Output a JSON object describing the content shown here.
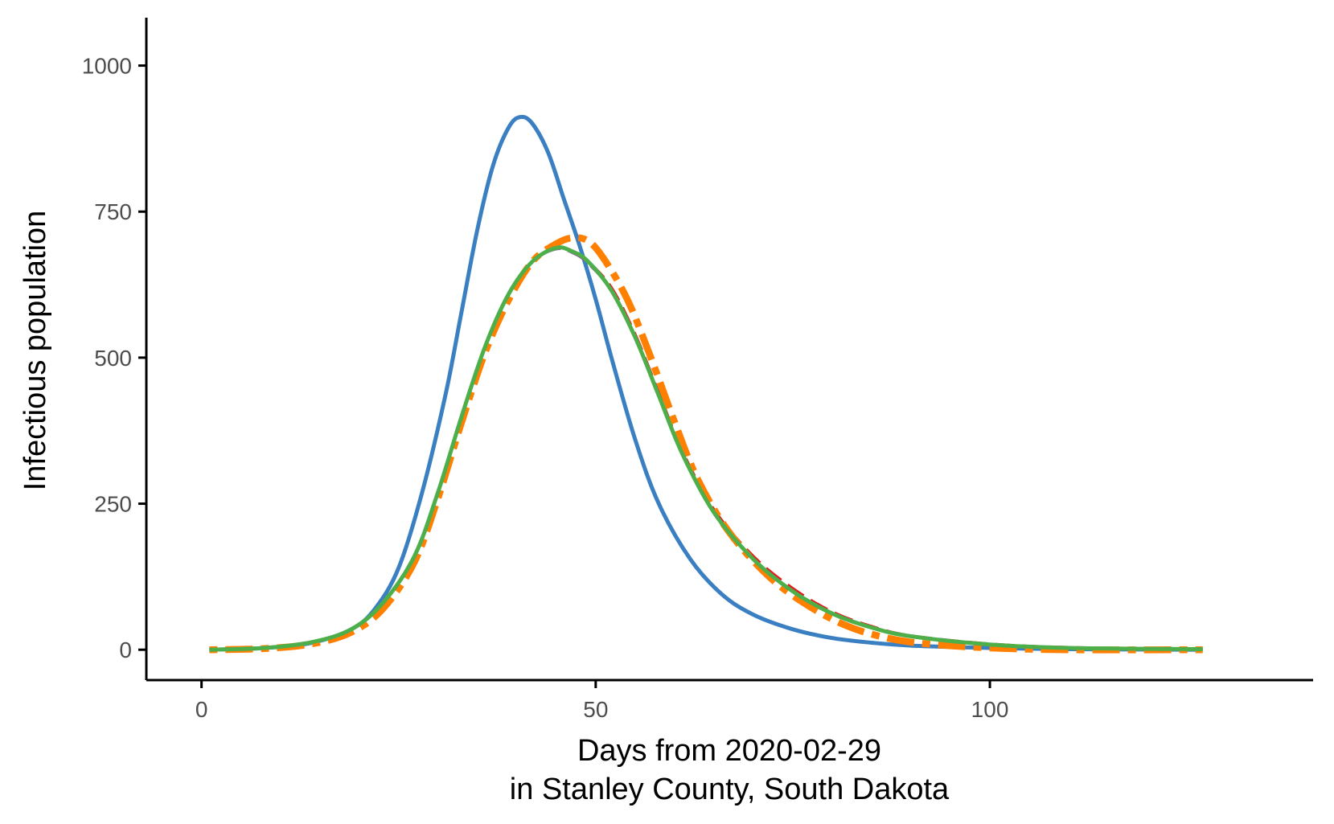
{
  "chart_data": {
    "type": "line",
    "xlabel_line1": "Days from 2020-02-29",
    "xlabel_line2": "in Stanley County, South Dakota",
    "ylabel": "Infectious population",
    "xlim": [
      -7,
      141
    ],
    "ylim": [
      -52,
      1082
    ],
    "x_ticks": [
      0,
      50,
      100
    ],
    "y_ticks": [
      0,
      250,
      500,
      750,
      1000
    ],
    "grid": false,
    "legend": "none",
    "series": [
      {
        "color": "#3a7fc1",
        "style": "solid",
        "points": [
          [
            1,
            0
          ],
          [
            8,
            3
          ],
          [
            14,
            12
          ],
          [
            19,
            35
          ],
          [
            22,
            70
          ],
          [
            25,
            140
          ],
          [
            28,
            270
          ],
          [
            31,
            440
          ],
          [
            33,
            580
          ],
          [
            35,
            720
          ],
          [
            37,
            830
          ],
          [
            39,
            895
          ],
          [
            40.5,
            912
          ],
          [
            42,
            900
          ],
          [
            44,
            850
          ],
          [
            46,
            770
          ],
          [
            48,
            690
          ],
          [
            50,
            600
          ],
          [
            52,
            500
          ],
          [
            55,
            360
          ],
          [
            58,
            250
          ],
          [
            62,
            155
          ],
          [
            66,
            95
          ],
          [
            70,
            60
          ],
          [
            75,
            35
          ],
          [
            80,
            20
          ],
          [
            85,
            12
          ],
          [
            90,
            7
          ],
          [
            100,
            3
          ],
          [
            110,
            1
          ],
          [
            127,
            0
          ]
        ]
      },
      {
        "color": "#e41a1c",
        "style": "dashed",
        "points": [
          [
            1,
            0
          ],
          [
            8,
            3
          ],
          [
            14,
            13
          ],
          [
            19,
            35
          ],
          [
            23,
            80
          ],
          [
            27,
            160
          ],
          [
            30,
            270
          ],
          [
            33,
            400
          ],
          [
            36,
            520
          ],
          [
            39,
            610
          ],
          [
            42,
            665
          ],
          [
            45,
            688
          ],
          [
            47,
            683
          ],
          [
            49,
            665
          ],
          [
            52,
            620
          ],
          [
            55,
            540
          ],
          [
            58,
            440
          ],
          [
            61,
            340
          ],
          [
            65,
            240
          ],
          [
            70,
            160
          ],
          [
            75,
            105
          ],
          [
            80,
            65
          ],
          [
            85,
            40
          ],
          [
            90,
            24
          ],
          [
            100,
            10
          ],
          [
            110,
            4
          ],
          [
            127,
            1
          ]
        ]
      },
      {
        "color": "#984ea3",
        "style": "dashed",
        "points": [
          [
            1,
            0
          ],
          [
            8,
            3
          ],
          [
            14,
            13
          ],
          [
            19,
            35
          ],
          [
            23,
            80
          ],
          [
            27,
            160
          ],
          [
            30,
            270
          ],
          [
            33,
            400
          ],
          [
            36,
            520
          ],
          [
            39,
            610
          ],
          [
            42,
            665
          ],
          [
            45,
            686
          ],
          [
            47,
            680
          ],
          [
            49,
            662
          ],
          [
            52,
            615
          ],
          [
            55,
            535
          ],
          [
            58,
            435
          ],
          [
            61,
            335
          ],
          [
            65,
            235
          ],
          [
            70,
            155
          ],
          [
            75,
            100
          ],
          [
            80,
            62
          ],
          [
            85,
            38
          ],
          [
            90,
            23
          ],
          [
            100,
            9
          ],
          [
            110,
            3
          ],
          [
            127,
            1
          ]
        ]
      },
      {
        "color": "#ff7f00",
        "style": "dotdash",
        "points": [
          [
            1,
            0
          ],
          [
            8,
            2
          ],
          [
            14,
            10
          ],
          [
            19,
            30
          ],
          [
            23,
            70
          ],
          [
            27,
            150
          ],
          [
            30,
            260
          ],
          [
            33,
            390
          ],
          [
            36,
            510
          ],
          [
            39,
            600
          ],
          [
            42,
            665
          ],
          [
            45,
            695
          ],
          [
            47,
            705
          ],
          [
            49,
            700
          ],
          [
            51,
            670
          ],
          [
            54,
            600
          ],
          [
            57,
            500
          ],
          [
            60,
            390
          ],
          [
            63,
            290
          ],
          [
            67,
            200
          ],
          [
            72,
            125
          ],
          [
            77,
            75
          ],
          [
            82,
            40
          ],
          [
            87,
            20
          ],
          [
            92,
            10
          ],
          [
            100,
            3
          ],
          [
            110,
            0
          ],
          [
            127,
            0
          ]
        ]
      },
      {
        "color": "#4daf4a",
        "style": "solid",
        "points": [
          [
            1,
            0
          ],
          [
            8,
            3
          ],
          [
            14,
            13
          ],
          [
            19,
            35
          ],
          [
            23,
            80
          ],
          [
            27,
            160
          ],
          [
            30,
            270
          ],
          [
            33,
            400
          ],
          [
            36,
            520
          ],
          [
            39,
            610
          ],
          [
            42,
            665
          ],
          [
            45,
            688
          ],
          [
            47,
            682
          ],
          [
            49,
            665
          ],
          [
            52,
            615
          ],
          [
            55,
            535
          ],
          [
            58,
            435
          ],
          [
            61,
            335
          ],
          [
            65,
            235
          ],
          [
            70,
            155
          ],
          [
            75,
            100
          ],
          [
            80,
            62
          ],
          [
            85,
            38
          ],
          [
            90,
            23
          ],
          [
            100,
            9
          ],
          [
            110,
            3
          ],
          [
            127,
            1
          ]
        ]
      }
    ]
  }
}
